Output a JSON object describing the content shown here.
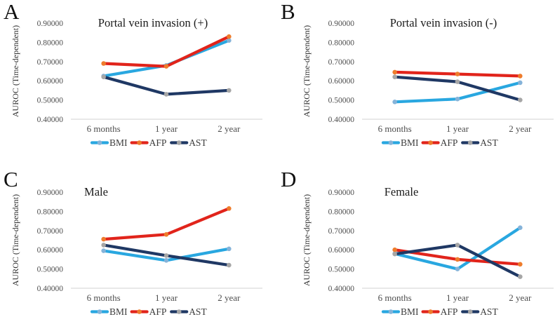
{
  "figure": {
    "ylabel": "AUROC (Time-dependent)",
    "categories": [
      "6 months",
      "1 year",
      "2 year"
    ],
    "ytick_labels": [
      "0.90000",
      "0.80000",
      "0.70000",
      "0.60000",
      "0.50000",
      "0.40000"
    ],
    "legend_labels": [
      "BMI",
      "AFP",
      "AST"
    ]
  },
  "colors": {
    "bmi_line": "#29a7e0",
    "bmi_marker": "#85b3d9",
    "afp_line": "#e1241b",
    "afp_marker": "#ee7c2c",
    "ast_line": "#1f3864",
    "ast_marker": "#a6a6a6",
    "axis_line": "#d9d9d9",
    "text": "#4d4d4d"
  },
  "chart_data": [
    {
      "panel_label": "A",
      "type": "line",
      "title": "Portal vein invasion (+)",
      "xlabel": "",
      "ylabel": "AUROC (Time-dependent)",
      "categories": [
        "6 months",
        "1 year",
        "2 year"
      ],
      "ylim": [
        0.4,
        0.9
      ],
      "yticks": [
        0.9,
        0.8,
        0.7,
        0.6,
        0.5,
        0.4
      ],
      "grid": false,
      "legend_position": "bottom",
      "series": [
        {
          "name": "BMI",
          "color": "#29a7e0",
          "marker_color": "#85b3d9",
          "values": [
            0.625,
            0.68,
            0.81
          ]
        },
        {
          "name": "AFP",
          "color": "#e1241b",
          "marker_color": "#ee7c2c",
          "values": [
            0.69,
            0.675,
            0.83
          ]
        },
        {
          "name": "AST",
          "color": "#1f3864",
          "marker_color": "#a6a6a6",
          "values": [
            0.62,
            0.53,
            0.55
          ]
        }
      ]
    },
    {
      "panel_label": "B",
      "type": "line",
      "title": "Portal vein invasion (-)",
      "xlabel": "",
      "ylabel": "AUROC (Time-dependent)",
      "categories": [
        "6 months",
        "1 year",
        "2 year"
      ],
      "ylim": [
        0.4,
        0.9
      ],
      "yticks": [
        0.9,
        0.8,
        0.7,
        0.6,
        0.5,
        0.4
      ],
      "grid": false,
      "legend_position": "bottom",
      "series": [
        {
          "name": "BMI",
          "color": "#29a7e0",
          "marker_color": "#85b3d9",
          "values": [
            0.49,
            0.505,
            0.59
          ]
        },
        {
          "name": "AFP",
          "color": "#e1241b",
          "marker_color": "#ee7c2c",
          "values": [
            0.645,
            0.635,
            0.625
          ]
        },
        {
          "name": "AST",
          "color": "#1f3864",
          "marker_color": "#a6a6a6",
          "values": [
            0.62,
            0.595,
            0.5
          ]
        }
      ]
    },
    {
      "panel_label": "C",
      "type": "line",
      "title": "Male",
      "xlabel": "",
      "ylabel": "AUROC (Time-dependent)",
      "categories": [
        "6 months",
        "1 year",
        "2 year"
      ],
      "ylim": [
        0.4,
        0.9
      ],
      "yticks": [
        0.9,
        0.8,
        0.7,
        0.6,
        0.5,
        0.4
      ],
      "grid": false,
      "legend_position": "bottom",
      "series": [
        {
          "name": "BMI",
          "color": "#29a7e0",
          "marker_color": "#85b3d9",
          "values": [
            0.595,
            0.545,
            0.605
          ]
        },
        {
          "name": "AFP",
          "color": "#e1241b",
          "marker_color": "#ee7c2c",
          "values": [
            0.655,
            0.68,
            0.815
          ]
        },
        {
          "name": "AST",
          "color": "#1f3864",
          "marker_color": "#a6a6a6",
          "values": [
            0.625,
            0.57,
            0.52
          ]
        }
      ]
    },
    {
      "panel_label": "D",
      "type": "line",
      "title": "Female",
      "xlabel": "",
      "ylabel": "AUROC (Time-dependent)",
      "categories": [
        "6 months",
        "1 year",
        "2 year"
      ],
      "ylim": [
        0.4,
        0.9
      ],
      "yticks": [
        0.9,
        0.8,
        0.7,
        0.6,
        0.5,
        0.4
      ],
      "grid": false,
      "legend_position": "bottom",
      "series": [
        {
          "name": "BMI",
          "color": "#29a7e0",
          "marker_color": "#85b3d9",
          "values": [
            0.58,
            0.5,
            0.715
          ]
        },
        {
          "name": "AFP",
          "color": "#e1241b",
          "marker_color": "#ee7c2c",
          "values": [
            0.6,
            0.55,
            0.525
          ]
        },
        {
          "name": "AST",
          "color": "#1f3864",
          "marker_color": "#a6a6a6",
          "values": [
            0.578,
            0.625,
            0.46
          ]
        }
      ]
    }
  ]
}
